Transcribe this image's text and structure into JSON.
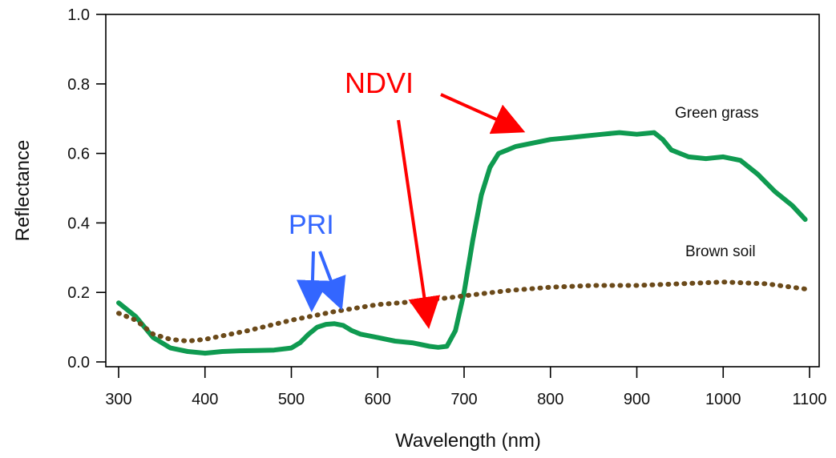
{
  "chart_data": {
    "type": "line",
    "xlabel": "Wavelength (nm)",
    "ylabel": "Reflectance",
    "xlim": [
      300,
      1100
    ],
    "ylim": [
      0.0,
      1.0
    ],
    "x_ticks": [
      300,
      400,
      500,
      600,
      700,
      800,
      900,
      1000,
      1100
    ],
    "x_tick_labels": [
      "300",
      "400",
      "500",
      "600",
      "700",
      "800",
      "900",
      "1000",
      "1100"
    ],
    "y_ticks": [
      0.0,
      0.2,
      0.4,
      0.6,
      0.8,
      1.0
    ],
    "y_tick_labels": [
      "0.0",
      "0.2",
      "0.4",
      "0.6",
      "0.8",
      "1.0"
    ],
    "grid": false,
    "series": [
      {
        "name": "Green grass",
        "color": "#0f9a50",
        "style": "solid",
        "x": [
          300,
          320,
          340,
          360,
          380,
          400,
          420,
          440,
          460,
          480,
          500,
          510,
          520,
          530,
          540,
          550,
          560,
          570,
          580,
          600,
          620,
          640,
          660,
          670,
          680,
          690,
          700,
          710,
          720,
          730,
          740,
          750,
          760,
          780,
          800,
          820,
          840,
          860,
          880,
          900,
          920,
          930,
          940,
          950,
          960,
          980,
          1000,
          1020,
          1040,
          1060,
          1080,
          1095
        ],
        "y": [
          0.17,
          0.13,
          0.07,
          0.04,
          0.03,
          0.025,
          0.03,
          0.032,
          0.033,
          0.034,
          0.04,
          0.055,
          0.08,
          0.1,
          0.108,
          0.11,
          0.105,
          0.09,
          0.08,
          0.07,
          0.06,
          0.055,
          0.045,
          0.042,
          0.045,
          0.09,
          0.2,
          0.35,
          0.48,
          0.56,
          0.6,
          0.61,
          0.62,
          0.63,
          0.64,
          0.645,
          0.65,
          0.655,
          0.66,
          0.655,
          0.66,
          0.64,
          0.61,
          0.6,
          0.59,
          0.585,
          0.59,
          0.58,
          0.54,
          0.49,
          0.45,
          0.41
        ]
      },
      {
        "name": "Brown soil",
        "color": "#6b4a1a",
        "style": "dotted",
        "x": [
          300,
          320,
          340,
          360,
          380,
          400,
          450,
          500,
          550,
          600,
          650,
          700,
          750,
          800,
          850,
          900,
          950,
          1000,
          1050,
          1095
        ],
        "y": [
          0.14,
          0.12,
          0.08,
          0.065,
          0.06,
          0.065,
          0.09,
          0.12,
          0.145,
          0.165,
          0.175,
          0.19,
          0.205,
          0.215,
          0.22,
          0.22,
          0.225,
          0.23,
          0.225,
          0.21
        ]
      }
    ],
    "annotations": [
      {
        "text": "NDVI",
        "color": "#ff0000"
      },
      {
        "text": "PRI",
        "color": "#3366ff"
      }
    ]
  }
}
